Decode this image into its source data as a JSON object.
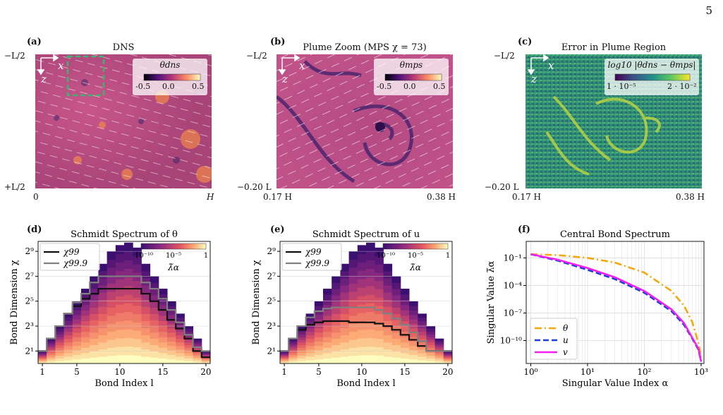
{
  "page_number": "5",
  "bottom_footnote": "",
  "panels": {
    "a": {
      "label": "(a)",
      "title": "DNS",
      "y_top": "−L/2",
      "y_bottom": "+L/2",
      "x_left": "0",
      "x_right": "H",
      "axis_x": "x",
      "axis_z": "z",
      "colorbar_label": "θdns",
      "cb_ticks": [
        "-0.5",
        "0.0",
        "0.5"
      ]
    },
    "b": {
      "label": "(b)",
      "title": "Plume Zoom (MPS χ = 73)",
      "y_top": "−L/2",
      "y_bottom": "−0.20 L",
      "x_left": "0.17 H",
      "x_right": "0.38 H",
      "axis_x": "x",
      "axis_z": "z",
      "colorbar_label": "θmps",
      "cb_ticks": [
        "-0.5",
        "0.0",
        "0.5"
      ]
    },
    "c": {
      "label": "(c)",
      "title": "Error in Plume Region",
      "y_top": "−L/2",
      "y_bottom": "−0.20 L",
      "x_left": "0.17 H",
      "x_right": "0.38 H",
      "axis_x": "x",
      "axis_z": "z",
      "colorbar_label": "log10 |θdns − θmps|",
      "cb_ticks": [
        "1 · 10⁻⁵",
        "2 · 10⁻²"
      ]
    },
    "d": {
      "label": "(d)",
      "title": "Schmidt Spectrum of θ",
      "xlabel": "Bond Index l",
      "ylabel": "Bond Dimension χ",
      "legend": [
        "χ99",
        "χ99.9"
      ],
      "cb_ticks": [
        "10⁻¹⁰",
        "10⁻⁵",
        "1"
      ],
      "cb_label": "λ̃α"
    },
    "e": {
      "label": "(e)",
      "title": "Schmidt Spectrum of u",
      "xlabel": "Bond Index l",
      "ylabel": "Bond Dimension χ",
      "legend": [
        "χ99",
        "χ99.9"
      ],
      "cb_ticks": [
        "10⁻¹⁰",
        "10⁻⁵",
        "1"
      ],
      "cb_label": "λ̃α"
    },
    "f": {
      "label": "(f)",
      "title": "Central Bond Spectrum",
      "xlabel": "Singular Value Index α",
      "ylabel": "Singular Value λ̃α",
      "legend": [
        "θ",
        "u",
        "v"
      ]
    }
  },
  "colors": {
    "chi99": "#111111",
    "chi999": "#808080",
    "theta": "#f5a70d",
    "u": "#1f3fdd",
    "v": "#f020f0",
    "dns_bg": "#b54a83",
    "err_bg": "#2f8f75",
    "green_box": "#3cb371"
  },
  "chart_data": [
    {
      "type": "heatmap",
      "panel": "d",
      "title": "Schmidt Spectrum of θ",
      "xlabel": "Bond Index l",
      "ylabel": "Bond Dimension χ",
      "x_ticks": [
        "1",
        "5",
        "10",
        "15",
        "20"
      ],
      "y_ticks": [
        "2¹",
        "2³",
        "2⁵",
        "2⁷",
        "2⁹"
      ],
      "x": [
        1,
        2,
        3,
        4,
        5,
        6,
        7,
        8,
        9,
        10,
        11,
        12,
        13,
        14,
        15,
        16,
        17,
        18,
        19,
        20
      ],
      "top_log2": [
        1,
        2,
        3,
        4,
        5,
        6,
        7,
        8,
        9,
        9.5,
        9.7,
        9.3,
        8,
        7,
        6,
        5,
        4,
        3,
        2,
        1
      ],
      "series": [
        {
          "name": "χ99",
          "log2_values": [
            1,
            2,
            3,
            4,
            4.6,
            5.2,
            5.6,
            6,
            6,
            6,
            6,
            6,
            5.6,
            5,
            4.3,
            3.5,
            2.8,
            2,
            1,
            0.5
          ]
        },
        {
          "name": "χ99.9",
          "log2_values": [
            1,
            2,
            3,
            4,
            4.9,
            5.6,
            6.5,
            7,
            7,
            7,
            7,
            7,
            6.5,
            6,
            5.2,
            4.3,
            3.3,
            2.3,
            1.3,
            1
          ]
        }
      ],
      "colorbar": {
        "ticks": [
          "10⁻¹⁰",
          "10⁻⁵",
          "1"
        ],
        "label": "λ̃α"
      }
    },
    {
      "type": "heatmap",
      "panel": "e",
      "title": "Schmidt Spectrum of u",
      "xlabel": "Bond Index l",
      "ylabel": "Bond Dimension χ",
      "x_ticks": [
        "1",
        "5",
        "10",
        "15",
        "20"
      ],
      "y_ticks": [
        "2¹",
        "2³",
        "2⁵",
        "2⁷",
        "2⁹"
      ],
      "x": [
        1,
        2,
        3,
        4,
        5,
        6,
        7,
        8,
        9,
        10,
        11,
        12,
        13,
        14,
        15,
        16,
        17,
        18,
        19,
        20
      ],
      "top_log2": [
        1,
        2,
        3,
        4,
        5,
        6,
        7,
        8,
        9,
        9.5,
        9.7,
        9.3,
        8,
        7,
        6,
        5,
        4,
        3,
        2,
        1
      ],
      "series": [
        {
          "name": "χ99",
          "log2_values": [
            1,
            2,
            2.7,
            3.1,
            3.3,
            3.4,
            3.4,
            3.4,
            3.3,
            3.3,
            3.3,
            3.2,
            3.0,
            2.7,
            2.3,
            1.9,
            1.4,
            1,
            1,
            1
          ]
        },
        {
          "name": "χ99.9",
          "log2_values": [
            1,
            2,
            3,
            3.7,
            4.2,
            4.4,
            4.5,
            4.5,
            4.5,
            4.5,
            4.5,
            4.3,
            4.0,
            3.6,
            3.1,
            2.5,
            1.8,
            1,
            1,
            1
          ]
        }
      ],
      "colorbar": {
        "ticks": [
          "10⁻¹⁰",
          "10⁻⁵",
          "1"
        ],
        "label": "λ̃α"
      }
    },
    {
      "type": "line",
      "panel": "f",
      "title": "Central Bond Spectrum",
      "xlabel": "Singular Value Index α",
      "ylabel": "Singular Value λ̃α",
      "x_scale": "log",
      "y_scale": "log",
      "x_ticks": [
        "10⁰",
        "10¹",
        "10²",
        "10³"
      ],
      "y_ticks": [
        "10⁻¹",
        "10⁻⁴",
        "10⁻⁷",
        "10⁻¹⁰"
      ],
      "xlim": [
        1,
        1000
      ],
      "ylim_log10": [
        -12.5,
        0.8
      ],
      "x": [
        1,
        3,
        10,
        30,
        100,
        300,
        500,
        700,
        900,
        1000
      ],
      "series": [
        {
          "name": "θ",
          "log10_values": [
            -0.6,
            -0.7,
            -1.0,
            -1.5,
            -2.6,
            -4.6,
            -6.2,
            -8.0,
            -10.3,
            -11.8
          ]
        },
        {
          "name": "u",
          "log10_values": [
            -0.6,
            -1.3,
            -2.3,
            -3.3,
            -4.8,
            -6.8,
            -8.3,
            -9.8,
            -11.0,
            -12.3
          ]
        },
        {
          "name": "v",
          "log10_values": [
            -0.6,
            -1.2,
            -2.1,
            -3.1,
            -4.6,
            -6.6,
            -8.1,
            -9.7,
            -10.9,
            -12.3
          ]
        }
      ],
      "legend_position": "lower-left"
    }
  ]
}
